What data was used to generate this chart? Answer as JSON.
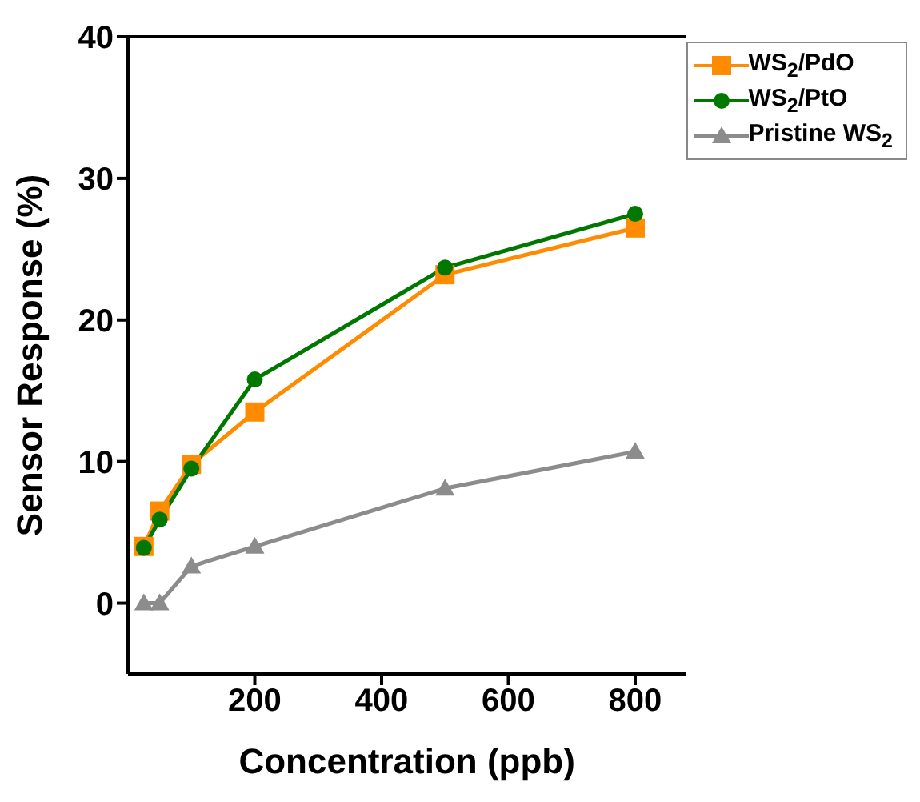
{
  "chart_data": {
    "type": "line",
    "xlabel": "Concentration (ppb)",
    "ylabel": "Sensor Response (%)",
    "x": [
      25,
      50,
      100,
      200,
      500,
      800
    ],
    "series": [
      {
        "name": "WS$_{2}$/PdO",
        "color": "#ff8c00",
        "marker": "square",
        "values": [
          4.0,
          6.5,
          9.8,
          13.5,
          23.2,
          26.5
        ]
      },
      {
        "name": "WS$_{2}$/PtO",
        "color": "#007800",
        "marker": "circle",
        "values": [
          3.9,
          5.9,
          9.5,
          15.8,
          23.7,
          27.5
        ]
      },
      {
        "name": "Pristine WS$_{2}$",
        "color": "#8c8c8c",
        "marker": "triangle",
        "values": [
          0,
          0,
          2.6,
          4.0,
          8.1,
          10.7
        ]
      }
    ],
    "xlim": [
      0,
      880
    ],
    "xticks": [
      200,
      400,
      600,
      800
    ],
    "ylim": [
      -5,
      40
    ],
    "yticks": [
      0,
      10,
      20,
      30,
      40
    ],
    "grid": false,
    "legend": "top right"
  }
}
